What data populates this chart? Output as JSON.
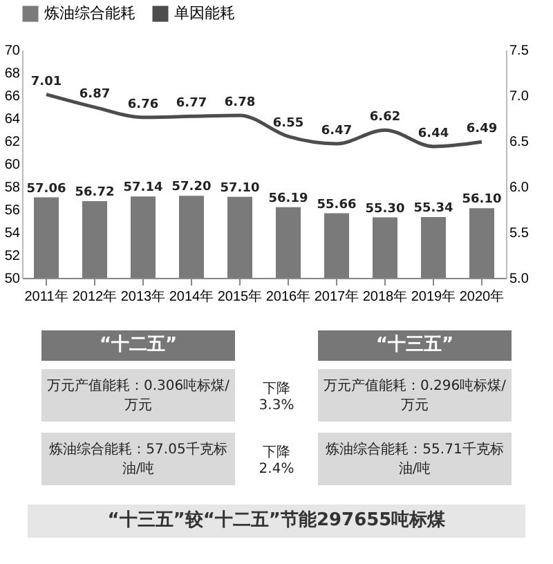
{
  "chart_data": {
    "type": "bar",
    "categories": [
      "2011年",
      "2012年",
      "2013年",
      "2014年",
      "2015年",
      "2016年",
      "2017年",
      "2018年",
      "2019年",
      "2020年"
    ],
    "series": [
      {
        "name": "炼油综合能耗",
        "color": "#7a7a7a",
        "values": [
          57.06,
          56.72,
          57.14,
          57.2,
          57.1,
          56.19,
          55.66,
          55.3,
          55.34,
          56.1
        ],
        "value_labels": [
          "57.06",
          "56.72",
          "57.14",
          "57.20",
          "57.10",
          "56.19",
          "55.66",
          "55.30",
          "55.34",
          "56.10"
        ]
      },
      {
        "name": "单因能耗",
        "type": "line",
        "axis": "y2",
        "color": "#4d4d4d",
        "values": [
          7.01,
          6.87,
          6.76,
          6.77,
          6.78,
          6.55,
          6.47,
          6.62,
          6.44,
          6.49
        ],
        "value_labels": [
          "7.01",
          "6.87",
          "6.76",
          "6.77",
          "6.78",
          "6.55",
          "6.47",
          "6.62",
          "6.44",
          "6.49"
        ]
      }
    ],
    "ylim": [
      50,
      70
    ],
    "yticks": [
      50,
      52,
      54,
      56,
      58,
      60,
      62,
      64,
      66,
      68,
      70
    ],
    "y2lim": [
      5,
      7.5
    ],
    "y2ticks": [
      {
        "value": 5,
        "label": "5.0"
      },
      {
        "value": 5.5,
        "label": "5.5"
      },
      {
        "value": 6,
        "label": "6.0"
      },
      {
        "value": 6.5,
        "label": "6.5"
      },
      {
        "value": 7,
        "label": "7.0"
      },
      {
        "value": 7.5,
        "label": "7.5"
      }
    ],
    "legend": "top",
    "grid": false,
    "marker": "none",
    "line_style": "solid",
    "annotations": [
      "“十二五”",
      "“十三五”",
      "万元产值能耗：0.306吨标煤/万元",
      "炼油综合能耗：57.05千克标油/吨",
      "下降 3.3%",
      "下降 2.4%",
      "万元产值能耗：0.296吨标煤/万元",
      "炼油综合能耗：55.71千克标油/吨",
      "“十三五”较“十二五”节能297655吨标煤"
    ]
  }
}
